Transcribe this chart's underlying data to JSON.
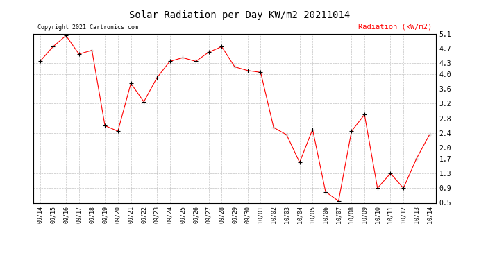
{
  "title": "Solar Radiation per Day KW/m2 20211014",
  "legend_label": "Radiation (kW/m2)",
  "copyright_text": "Copyright 2021 Cartronics.com",
  "line_color": "red",
  "marker_color": "black",
  "background_color": "#ffffff",
  "grid_color": "#aaaaaa",
  "ylim": [
    0.5,
    5.1
  ],
  "yticks": [
    0.5,
    0.9,
    1.3,
    1.7,
    2.0,
    2.4,
    2.8,
    3.2,
    3.6,
    4.0,
    4.3,
    4.7,
    5.1
  ],
  "dates": [
    "09/14",
    "09/15",
    "09/16",
    "09/17",
    "09/18",
    "09/19",
    "09/20",
    "09/21",
    "09/22",
    "09/23",
    "09/24",
    "09/25",
    "09/26",
    "09/27",
    "09/28",
    "09/29",
    "09/30",
    "10/01",
    "10/02",
    "10/03",
    "10/04",
    "10/05",
    "10/06",
    "10/07",
    "10/08",
    "10/09",
    "10/10",
    "10/11",
    "10/12",
    "10/13",
    "10/14"
  ],
  "values": [
    4.35,
    4.75,
    5.05,
    4.55,
    4.65,
    2.6,
    2.45,
    3.75,
    3.25,
    3.9,
    4.35,
    4.45,
    4.35,
    4.6,
    4.75,
    4.2,
    4.1,
    4.05,
    2.55,
    2.35,
    1.6,
    2.5,
    0.8,
    0.55,
    2.45,
    2.9,
    0.9,
    1.3,
    0.9,
    1.7,
    2.35
  ]
}
